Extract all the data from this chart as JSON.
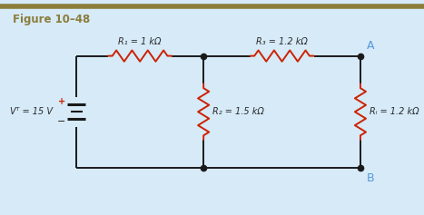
{
  "title": "Figure 10–48",
  "top_bar_color": "#8b7d3a",
  "background_color": "#d6eaf8",
  "title_color": "#8b7d3a",
  "wire_color": "#1a1a1a",
  "resistor_color": "#cc2200",
  "node_color": "#1a1a1a",
  "label_color": "#2a2a2a",
  "label_A_color": "#5599dd",
  "label_B_color": "#5599dd",
  "voltage_label": "Vᵀ = 15 V",
  "R1_label": "R₁ = 1 kΩ",
  "R2_label": "R₂ = 1.5 kΩ",
  "R3_label": "R₃ = 1.2 kΩ",
  "RL_label": "Rₗ = 1.2 kΩ",
  "plus_color": "#cc2200",
  "minus_color": "#2a2a2a",
  "xlim": [
    0,
    10
  ],
  "ylim": [
    0,
    5
  ],
  "figwidth": 4.67,
  "figheight": 2.37,
  "dpi": 100
}
